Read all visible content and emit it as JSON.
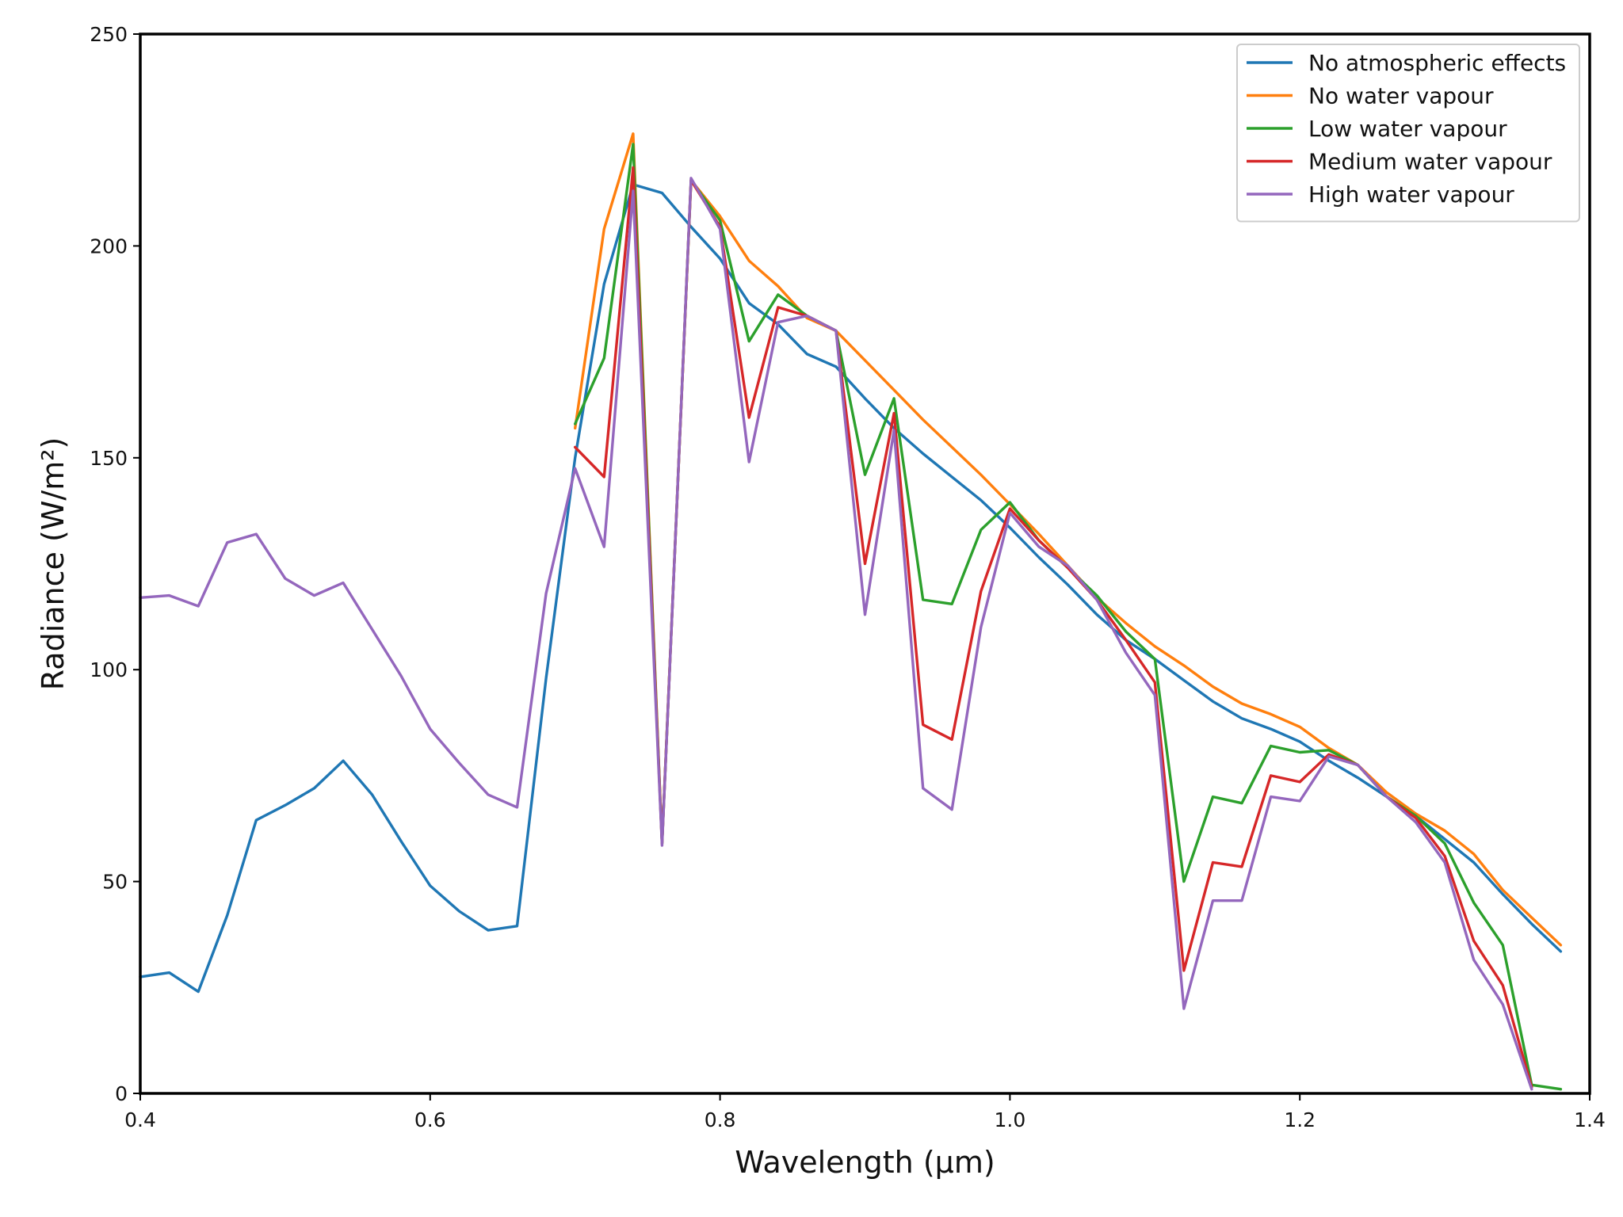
{
  "chart_data": {
    "type": "line",
    "title": "",
    "xlabel": "Wavelength (μm)",
    "ylabel": "Radiance (W/m²)",
    "xlim": [
      0.4,
      1.4
    ],
    "ylim": [
      0,
      250
    ],
    "x_ticks": [
      {
        "value": 0.4,
        "label": "0.4"
      },
      {
        "value": 0.6,
        "label": "0.6"
      },
      {
        "value": 0.8,
        "label": "0.8"
      },
      {
        "value": 1.0,
        "label": "1.0"
      },
      {
        "value": 1.2,
        "label": "1.2"
      },
      {
        "value": 1.4,
        "label": "1.4"
      }
    ],
    "y_ticks": [
      {
        "value": 0,
        "label": "0"
      },
      {
        "value": 50,
        "label": "50"
      },
      {
        "value": 100,
        "label": "100"
      },
      {
        "value": 150,
        "label": "150"
      },
      {
        "value": 200,
        "label": "200"
      },
      {
        "value": 250,
        "label": "250"
      }
    ],
    "grid": false,
    "legend_position": "top-right",
    "series": [
      {
        "name": "No atmospheric effects",
        "color": "#1f77b4",
        "x": [
          0.4,
          0.42,
          0.44,
          0.46,
          0.48,
          0.5,
          0.52,
          0.54,
          0.56,
          0.58,
          0.6,
          0.62,
          0.64,
          0.66,
          0.68,
          0.7,
          0.72,
          0.74,
          0.76,
          0.78,
          0.8,
          0.82,
          0.84,
          0.86,
          0.88,
          0.9,
          0.92,
          0.94,
          0.96,
          0.98,
          1.0,
          1.02,
          1.04,
          1.06,
          1.08,
          1.1,
          1.12,
          1.14,
          1.16,
          1.18,
          1.2,
          1.22,
          1.24,
          1.26,
          1.28,
          1.3,
          1.32,
          1.34,
          1.36,
          1.38
        ],
        "y": [
          27.5,
          28.5,
          24,
          42,
          64.5,
          68,
          72,
          78.5,
          70.5,
          59.5,
          49,
          43,
          38.5,
          39.5,
          98,
          150,
          191,
          214.5,
          212.5,
          204.5,
          197,
          186.5,
          181.5,
          174.5,
          171.5,
          164,
          157,
          151,
          145.5,
          140,
          133.5,
          126.5,
          120,
          113,
          107,
          102.5,
          97.5,
          92.5,
          88.5,
          86,
          83,
          78.5,
          74.5,
          70,
          65.5,
          60,
          54.5,
          47,
          40,
          33.5
        ]
      },
      {
        "name": "No water vapour",
        "color": "#ff7f0e",
        "x": [
          0.7,
          0.72,
          0.74,
          0.76,
          0.78,
          0.8,
          0.82,
          0.84,
          0.86,
          0.88,
          0.9,
          0.92,
          0.94,
          0.96,
          0.98,
          1.0,
          1.02,
          1.04,
          1.06,
          1.08,
          1.1,
          1.12,
          1.14,
          1.16,
          1.18,
          1.2,
          1.22,
          1.24,
          1.26,
          1.28,
          1.3,
          1.32,
          1.34,
          1.36,
          1.38
        ],
        "y": [
          157,
          204,
          226.5,
          59,
          215.5,
          207,
          196.5,
          190.5,
          183,
          180,
          173,
          166,
          159,
          152.5,
          146,
          139,
          132,
          124.5,
          117,
          111,
          105.5,
          101,
          96,
          92,
          89.5,
          86.5,
          81.5,
          77.5,
          71,
          66,
          62,
          56.5,
          48,
          41.5,
          35
        ]
      },
      {
        "name": "Low water vapour",
        "color": "#2ca02c",
        "x": [
          0.7,
          0.72,
          0.74,
          0.76,
          0.78,
          0.8,
          0.82,
          0.84,
          0.86,
          0.88,
          0.9,
          0.92,
          0.94,
          0.96,
          0.98,
          1.0,
          1.02,
          1.04,
          1.06,
          1.08,
          1.1,
          1.12,
          1.14,
          1.16,
          1.18,
          1.2,
          1.22,
          1.24,
          1.26,
          1.28,
          1.3,
          1.32,
          1.34,
          1.36,
          1.38
        ],
        "y": [
          158,
          173.5,
          224,
          59,
          215.5,
          206,
          177.5,
          188.5,
          183.5,
          180,
          146,
          164,
          116.5,
          115.5,
          133,
          139.5,
          130.5,
          124,
          117.5,
          109,
          102.5,
          50,
          70,
          68.5,
          82,
          80.5,
          81,
          77.5,
          70,
          65.5,
          59,
          45,
          35,
          2,
          1
        ]
      },
      {
        "name": "Medium water vapour",
        "color": "#d62728",
        "x": [
          0.7,
          0.72,
          0.74,
          0.76,
          0.78,
          0.8,
          0.82,
          0.84,
          0.86,
          0.88,
          0.9,
          0.92,
          0.94,
          0.96,
          0.98,
          1.0,
          1.02,
          1.04,
          1.06,
          1.08,
          1.1,
          1.12,
          1.14,
          1.16,
          1.18,
          1.2,
          1.22,
          1.24,
          1.26,
          1.28,
          1.3,
          1.32,
          1.34,
          1.36
        ],
        "y": [
          152.5,
          145.5,
          218.5,
          59,
          215.5,
          204.5,
          159.5,
          185.5,
          183.5,
          180,
          125,
          160.5,
          87,
          83.5,
          118.5,
          138,
          130.5,
          124,
          116.5,
          107,
          97,
          29,
          54.5,
          53.5,
          75,
          73.5,
          80,
          77.5,
          70,
          65,
          56,
          36,
          25.5,
          1.5
        ]
      },
      {
        "name": "High water vapour",
        "color": "#9467bd",
        "x": [
          0.4,
          0.42,
          0.44,
          0.46,
          0.48,
          0.5,
          0.52,
          0.54,
          0.56,
          0.58,
          0.6,
          0.62,
          0.64,
          0.66,
          0.68,
          0.7,
          0.72,
          0.74,
          0.76,
          0.78,
          0.8,
          0.82,
          0.84,
          0.86,
          0.88,
          0.9,
          0.92,
          0.94,
          0.96,
          0.98,
          1.0,
          1.02,
          1.04,
          1.06,
          1.08,
          1.1,
          1.12,
          1.14,
          1.16,
          1.18,
          1.2,
          1.22,
          1.24,
          1.26,
          1.28,
          1.3,
          1.32,
          1.34,
          1.36
        ],
        "y": [
          117,
          117.5,
          115,
          130,
          132,
          121.5,
          117.5,
          120.5,
          109.5,
          98.5,
          86,
          78,
          70.5,
          67.5,
          118,
          147.5,
          129,
          213,
          58.5,
          216,
          204,
          149,
          182,
          183.5,
          180,
          113,
          156.5,
          72,
          67,
          110,
          137,
          129,
          124.5,
          116.5,
          104,
          94,
          20,
          45.5,
          45.5,
          70,
          69,
          79.5,
          77.5,
          70,
          64,
          54.5,
          31.5,
          21,
          1
        ]
      }
    ]
  }
}
